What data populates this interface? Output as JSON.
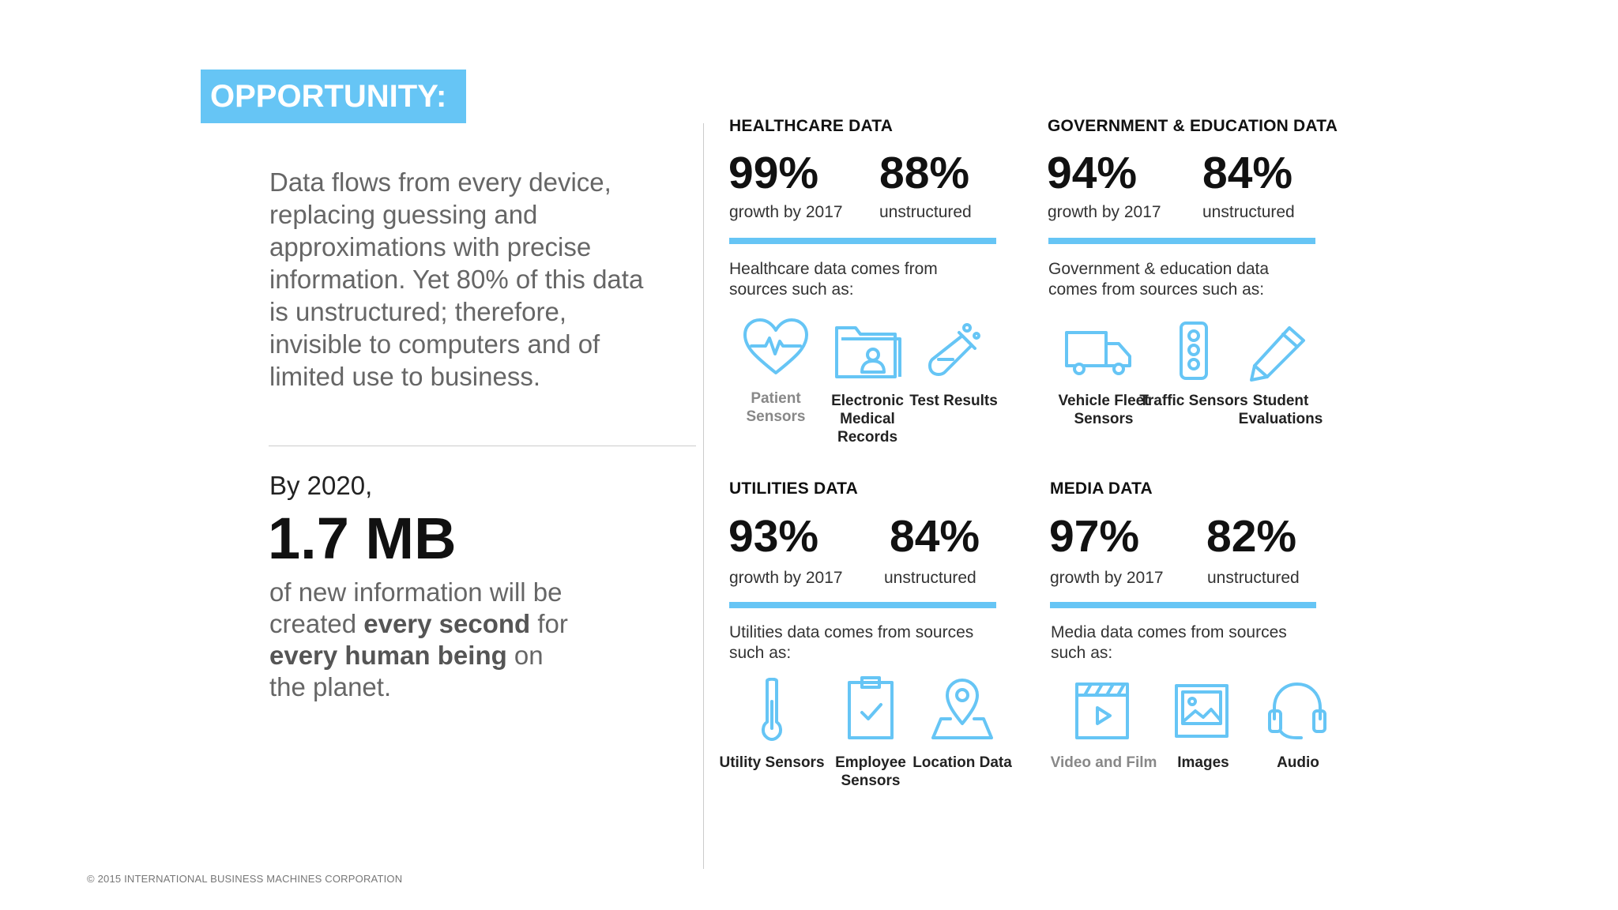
{
  "badge": "OPPORTUNITY:",
  "intro": "Data flows from every device, replacing guessing and approximations with precise information. Yet 80% of this data is unstructured; therefore, invisible to computers and of limited use to business.",
  "stat": {
    "lead": "By 2020,",
    "value": "1.7 MB",
    "desc": [
      {
        "text": "of new information will be created ",
        "bold": false
      },
      {
        "text": "every second",
        "bold": true
      },
      {
        "text": " for ",
        "bold": false
      },
      {
        "text": "every human being",
        "bold": true
      },
      {
        "text": " on the planet.",
        "bold": false
      }
    ]
  },
  "footer": "© 2015 INTERNATIONAL BUSINESS MACHINES CORPORATION",
  "colors": {
    "accent": "#66c5f5"
  },
  "sections": {
    "healthcare": {
      "title": "HEALTHCARE DATA",
      "growth_value": "99%",
      "growth_label": "growth by 2017",
      "unstructured_value": "88%",
      "unstructured_label": "unstructured",
      "source_text": "Healthcare data comes from sources such as:",
      "sources": [
        {
          "icon": "heart-pulse-icon",
          "label": "Patient Sensors"
        },
        {
          "icon": "folder-person-icon",
          "label": "Electronic Medical Records"
        },
        {
          "icon": "test-tube-icon",
          "label": "Test Results"
        }
      ]
    },
    "government": {
      "title": "GOVERNMENT & EDUCATION DATA",
      "growth_value": "94%",
      "growth_label": "growth by 2017",
      "unstructured_value": "84%",
      "unstructured_label": "unstructured",
      "source_text": "Government & education data comes from sources such as:",
      "sources": [
        {
          "icon": "truck-icon",
          "label": "Vehicle Fleet Sensors"
        },
        {
          "icon": "traffic-light-icon",
          "label": "Traffic Sensors"
        },
        {
          "icon": "pencil-icon",
          "label": "Student Evaluations"
        }
      ]
    },
    "utilities": {
      "title": "UTILITIES DATA",
      "growth_value": "93%",
      "growth_label": "growth by 2017",
      "unstructured_value": "84%",
      "unstructured_label": "unstructured",
      "source_text": "Utilities data comes from sources such as:",
      "sources": [
        {
          "icon": "thermometer-icon",
          "label": "Utility Sensors"
        },
        {
          "icon": "clipboard-check-icon",
          "label": "Employee Sensors"
        },
        {
          "icon": "map-pin-icon",
          "label": "Location Data"
        }
      ]
    },
    "media": {
      "title": "MEDIA DATA",
      "growth_value": "97%",
      "growth_label": "growth by 2017",
      "unstructured_value": "82%",
      "unstructured_label": "unstructured",
      "source_text": "Media data comes from sources such as:",
      "sources": [
        {
          "icon": "clapperboard-icon",
          "label": "Video and Film"
        },
        {
          "icon": "image-icon",
          "label": "Images"
        },
        {
          "icon": "headphones-icon",
          "label": "Audio"
        }
      ]
    }
  }
}
